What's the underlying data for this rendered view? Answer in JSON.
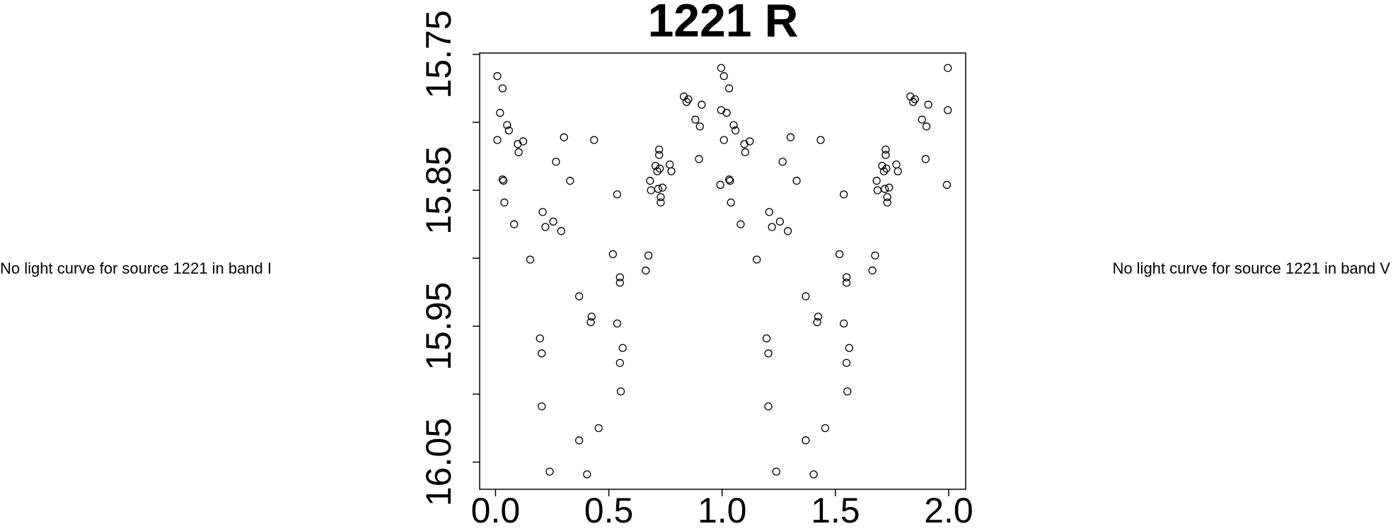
{
  "chart_data": {
    "type": "scatter",
    "title": "1221 R",
    "annotations": [
      "No light curve for source 1221 in band I",
      "No light curve for source 1221 in band V"
    ],
    "x": [
      0.008,
      0.031,
      0.02,
      0.051,
      0.059,
      0.008,
      0.098,
      0.122,
      0.102,
      0.031,
      0.035,
      0.039,
      0.082,
      0.153,
      0.208,
      0.22,
      0.255,
      0.29,
      0.267,
      0.302,
      0.329,
      0.435,
      0.369,
      0.424,
      0.42,
      0.196,
      0.204,
      0.204,
      0.239,
      0.369,
      0.404,
      0.455,
      0.518,
      0.537,
      0.549,
      0.549,
      0.537,
      0.561,
      0.549,
      0.553,
      0.663,
      0.675,
      0.682,
      0.686,
      0.706,
      0.714,
      0.722,
      0.722,
      0.725,
      0.718,
      0.729,
      0.729,
      0.737,
      0.769,
      0.776,
      0.831,
      0.851,
      0.843,
      0.91,
      0.882,
      0.898,
      0.902,
      0.996,
      0.996,
      0.992,
      1.008,
      1.031,
      1.02,
      1.051,
      1.059,
      1.008,
      1.098,
      1.122,
      1.102,
      1.031,
      1.035,
      1.039,
      1.082,
      1.153,
      1.208,
      1.22,
      1.255,
      1.29,
      1.267,
      1.302,
      1.329,
      1.435,
      1.369,
      1.424,
      1.42,
      1.196,
      1.204,
      1.204,
      1.239,
      1.369,
      1.404,
      1.455,
      1.518,
      1.537,
      1.549,
      1.549,
      1.537,
      1.561,
      1.549,
      1.553,
      1.663,
      1.675,
      1.682,
      1.686,
      1.706,
      1.714,
      1.722,
      1.722,
      1.725,
      1.718,
      1.729,
      1.729,
      1.737,
      1.769,
      1.776,
      1.831,
      1.851,
      1.843,
      1.91,
      1.882,
      1.898,
      1.902,
      1.996,
      1.996,
      1.992
    ],
    "values": [
      15.766,
      15.775,
      15.793,
      15.802,
      15.806,
      15.813,
      15.816,
      15.814,
      15.822,
      15.842,
      15.843,
      15.859,
      15.875,
      15.901,
      15.866,
      15.877,
      15.873,
      15.88,
      15.829,
      15.811,
      15.843,
      15.813,
      15.928,
      15.943,
      15.947,
      15.959,
      15.97,
      16.009,
      16.057,
      16.034,
      16.059,
      16.025,
      15.897,
      15.853,
      15.914,
      15.918,
      15.948,
      15.966,
      15.977,
      15.998,
      15.909,
      15.898,
      15.843,
      15.85,
      15.832,
      15.836,
      15.824,
      15.82,
      15.834,
      15.849,
      15.855,
      15.859,
      15.848,
      15.831,
      15.836,
      15.781,
      15.783,
      15.785,
      15.787,
      15.798,
      15.827,
      15.803,
      15.76,
      15.791,
      15.846,
      15.766,
      15.775,
      15.793,
      15.802,
      15.806,
      15.813,
      15.816,
      15.814,
      15.822,
      15.842,
      15.843,
      15.859,
      15.875,
      15.901,
      15.866,
      15.877,
      15.873,
      15.88,
      15.829,
      15.811,
      15.843,
      15.813,
      15.928,
      15.943,
      15.947,
      15.959,
      15.97,
      16.009,
      16.057,
      16.034,
      16.059,
      16.025,
      15.897,
      15.853,
      15.914,
      15.918,
      15.948,
      15.966,
      15.977,
      15.998,
      15.909,
      15.898,
      15.843,
      15.85,
      15.832,
      15.836,
      15.824,
      15.82,
      15.834,
      15.849,
      15.855,
      15.859,
      15.848,
      15.831,
      15.836,
      15.781,
      15.783,
      15.785,
      15.787,
      15.798,
      15.827,
      15.803,
      15.76,
      15.791,
      15.846
    ],
    "color": "#000000",
    "xlim": [
      -0.07,
      2.075
    ],
    "ylim": [
      16.07,
      15.749
    ],
    "xticks": [
      {
        "value": 0,
        "label": "0.0"
      },
      0.5,
      {
        "value": 1,
        "label": "1.0"
      },
      1.5,
      {
        "value": 2,
        "label": "2.0"
      }
    ],
    "yticks": [
      15.75,
      {
        "value": 15.8,
        "label": null
      },
      15.85,
      {
        "value": 15.9,
        "label": null
      },
      15.95,
      {
        "value": 16,
        "label": null
      },
      16.05
    ]
  }
}
